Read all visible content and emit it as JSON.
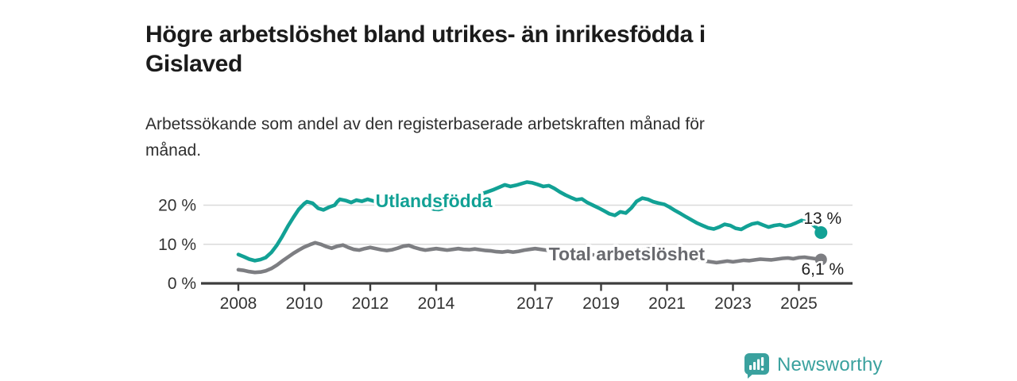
{
  "header": {
    "title_lines": [
      "Högre arbetslöshet bland utrikes- än inrikesfödda i",
      "Gislaved"
    ],
    "subtitle_lines": [
      "Arbetssökande som andel av den registerbaserade arbetskraften månad för",
      "månad."
    ]
  },
  "branding": {
    "logo_text": "Newsworthy",
    "logo_icon": "speech-bubble-bar-chart-icon",
    "brand_color": "#3aa19e"
  },
  "chart_data": {
    "type": "line",
    "unit": "%",
    "grid": true,
    "legend": "inline-labels",
    "axis_color": "#3d3d3d",
    "grid_color": "#dadada",
    "tick_label_color": "#333333",
    "end_label_color": "#1f1f1f",
    "x_range": [
      2008.0,
      2025.67
    ],
    "y_range": [
      0,
      27
    ],
    "x_ticks": [
      {
        "year": 2008,
        "label": "2008"
      },
      {
        "year": 2010,
        "label": "2010"
      },
      {
        "year": 2012,
        "label": "2012"
      },
      {
        "year": 2014,
        "label": "2014"
      },
      {
        "year": 2017,
        "label": "2017"
      },
      {
        "year": 2019,
        "label": "2019"
      },
      {
        "year": 2021,
        "label": "2021"
      },
      {
        "year": 2023,
        "label": "2023"
      },
      {
        "year": 2025,
        "label": "2025"
      }
    ],
    "y_ticks": [
      {
        "value": 0,
        "label": "0 %"
      },
      {
        "value": 10,
        "label": "10 %"
      },
      {
        "value": 20,
        "label": "20 %"
      }
    ],
    "series": [
      {
        "name": "Utlandsfödda",
        "color": "#12a195",
        "label_color": "#12a195",
        "line_label": {
          "text": "Utlandsfödda",
          "year": 2013.93,
          "value": 21.1
        },
        "end_label": "13 %",
        "end_value": 13.0,
        "points": [
          [
            2008.0,
            7.4
          ],
          [
            2008.17,
            6.8
          ],
          [
            2008.33,
            6.2
          ],
          [
            2008.5,
            5.8
          ],
          [
            2008.67,
            6.1
          ],
          [
            2008.83,
            6.6
          ],
          [
            2009.0,
            7.9
          ],
          [
            2009.17,
            9.8
          ],
          [
            2009.33,
            12.0
          ],
          [
            2009.5,
            14.6
          ],
          [
            2009.67,
            16.9
          ],
          [
            2009.83,
            18.9
          ],
          [
            2010.0,
            20.4
          ],
          [
            2010.08,
            20.9
          ],
          [
            2010.25,
            20.5
          ],
          [
            2010.42,
            19.2
          ],
          [
            2010.58,
            18.8
          ],
          [
            2010.75,
            19.5
          ],
          [
            2010.92,
            20.0
          ],
          [
            2011.0,
            20.9
          ],
          [
            2011.08,
            21.5
          ],
          [
            2011.25,
            21.2
          ],
          [
            2011.42,
            20.7
          ],
          [
            2011.58,
            21.3
          ],
          [
            2011.75,
            21.0
          ],
          [
            2011.92,
            21.5
          ],
          [
            2012.08,
            21.1
          ],
          [
            2012.25,
            20.7
          ],
          [
            2012.42,
            21.0
          ],
          [
            2012.58,
            20.8
          ],
          [
            2012.75,
            21.1
          ],
          [
            2012.92,
            21.3
          ],
          [
            2013.08,
            21.0
          ],
          [
            2013.25,
            20.8
          ],
          [
            2013.42,
            20.5
          ],
          [
            2013.58,
            20.1
          ],
          [
            2013.75,
            19.6
          ],
          [
            2013.92,
            19.0
          ],
          [
            2014.08,
            18.9
          ],
          [
            2014.25,
            19.3
          ],
          [
            2014.42,
            19.8
          ],
          [
            2014.58,
            20.3
          ],
          [
            2014.75,
            20.8
          ],
          [
            2014.92,
            21.3
          ],
          [
            2015.08,
            21.9
          ],
          [
            2015.25,
            22.4
          ],
          [
            2015.42,
            23.0
          ],
          [
            2015.58,
            23.5
          ],
          [
            2015.75,
            24.0
          ],
          [
            2015.92,
            24.6
          ],
          [
            2016.08,
            25.2
          ],
          [
            2016.25,
            24.8
          ],
          [
            2016.42,
            25.1
          ],
          [
            2016.58,
            25.5
          ],
          [
            2016.75,
            25.9
          ],
          [
            2016.92,
            25.7
          ],
          [
            2017.08,
            25.3
          ],
          [
            2017.25,
            24.8
          ],
          [
            2017.42,
            25.0
          ],
          [
            2017.58,
            24.3
          ],
          [
            2017.75,
            23.4
          ],
          [
            2017.92,
            22.6
          ],
          [
            2018.08,
            22.0
          ],
          [
            2018.25,
            21.4
          ],
          [
            2018.42,
            21.6
          ],
          [
            2018.58,
            20.7
          ],
          [
            2018.75,
            20.0
          ],
          [
            2018.92,
            19.3
          ],
          [
            2019.08,
            18.6
          ],
          [
            2019.25,
            17.8
          ],
          [
            2019.42,
            17.4
          ],
          [
            2019.58,
            18.3
          ],
          [
            2019.75,
            18.0
          ],
          [
            2019.92,
            19.3
          ],
          [
            2020.08,
            21.0
          ],
          [
            2020.25,
            21.8
          ],
          [
            2020.42,
            21.5
          ],
          [
            2020.58,
            20.9
          ],
          [
            2020.75,
            20.5
          ],
          [
            2020.92,
            20.2
          ],
          [
            2021.08,
            19.5
          ],
          [
            2021.25,
            18.6
          ],
          [
            2021.42,
            17.8
          ],
          [
            2021.58,
            17.0
          ],
          [
            2021.75,
            16.2
          ],
          [
            2021.92,
            15.4
          ],
          [
            2022.08,
            14.8
          ],
          [
            2022.25,
            14.2
          ],
          [
            2022.42,
            13.9
          ],
          [
            2022.58,
            14.4
          ],
          [
            2022.75,
            15.1
          ],
          [
            2022.92,
            14.8
          ],
          [
            2023.08,
            14.1
          ],
          [
            2023.25,
            13.8
          ],
          [
            2023.42,
            14.6
          ],
          [
            2023.58,
            15.2
          ],
          [
            2023.75,
            15.5
          ],
          [
            2023.92,
            14.9
          ],
          [
            2024.08,
            14.4
          ],
          [
            2024.25,
            14.8
          ],
          [
            2024.42,
            15.0
          ],
          [
            2024.58,
            14.6
          ],
          [
            2024.75,
            14.9
          ],
          [
            2024.92,
            15.5
          ],
          [
            2025.08,
            16.1
          ],
          [
            2025.25,
            15.7
          ],
          [
            2025.42,
            15.0
          ],
          [
            2025.58,
            13.9
          ],
          [
            2025.67,
            13.0
          ]
        ]
      },
      {
        "name": "Total arbetslöshet",
        "color": "#7d7e82",
        "label_color": "#696a6f",
        "line_label": {
          "text": "Total arbetslöshet",
          "year": 2019.78,
          "value": 7.5
        },
        "end_label": "6,1 %",
        "end_value": 6.1,
        "points": [
          [
            2008.0,
            3.5
          ],
          [
            2008.17,
            3.3
          ],
          [
            2008.33,
            3.0
          ],
          [
            2008.5,
            2.8
          ],
          [
            2008.67,
            2.9
          ],
          [
            2008.83,
            3.2
          ],
          [
            2009.0,
            3.8
          ],
          [
            2009.17,
            4.7
          ],
          [
            2009.33,
            5.7
          ],
          [
            2009.5,
            6.7
          ],
          [
            2009.67,
            7.7
          ],
          [
            2009.83,
            8.5
          ],
          [
            2010.0,
            9.3
          ],
          [
            2010.17,
            9.9
          ],
          [
            2010.33,
            10.4
          ],
          [
            2010.5,
            10.0
          ],
          [
            2010.67,
            9.4
          ],
          [
            2010.83,
            9.0
          ],
          [
            2011.0,
            9.5
          ],
          [
            2011.17,
            9.8
          ],
          [
            2011.33,
            9.2
          ],
          [
            2011.5,
            8.7
          ],
          [
            2011.67,
            8.5
          ],
          [
            2011.83,
            8.9
          ],
          [
            2012.0,
            9.2
          ],
          [
            2012.17,
            8.9
          ],
          [
            2012.33,
            8.6
          ],
          [
            2012.5,
            8.4
          ],
          [
            2012.67,
            8.6
          ],
          [
            2012.83,
            9.0
          ],
          [
            2013.0,
            9.5
          ],
          [
            2013.17,
            9.7
          ],
          [
            2013.33,
            9.2
          ],
          [
            2013.5,
            8.8
          ],
          [
            2013.67,
            8.5
          ],
          [
            2013.83,
            8.7
          ],
          [
            2014.0,
            8.9
          ],
          [
            2014.17,
            8.7
          ],
          [
            2014.33,
            8.5
          ],
          [
            2014.5,
            8.7
          ],
          [
            2014.67,
            8.9
          ],
          [
            2014.83,
            8.7
          ],
          [
            2015.0,
            8.6
          ],
          [
            2015.17,
            8.8
          ],
          [
            2015.33,
            8.6
          ],
          [
            2015.5,
            8.4
          ],
          [
            2015.67,
            8.3
          ],
          [
            2015.83,
            8.1
          ],
          [
            2016.0,
            8.0
          ],
          [
            2016.17,
            8.2
          ],
          [
            2016.33,
            8.0
          ],
          [
            2016.5,
            8.2
          ],
          [
            2016.67,
            8.5
          ],
          [
            2016.83,
            8.7
          ],
          [
            2017.0,
            8.9
          ],
          [
            2017.17,
            8.7
          ],
          [
            2017.33,
            8.5
          ],
          [
            2017.5,
            8.4
          ],
          [
            2017.67,
            8.2
          ],
          [
            2017.83,
            8.0
          ],
          [
            2018.0,
            7.9
          ],
          [
            2018.25,
            7.7
          ],
          [
            2018.5,
            7.5
          ],
          [
            2018.75,
            7.3
          ],
          [
            2019.0,
            7.2
          ],
          [
            2019.25,
            7.0
          ],
          [
            2019.5,
            6.9
          ],
          [
            2019.75,
            7.1
          ],
          [
            2020.0,
            7.6
          ],
          [
            2020.25,
            8.5
          ],
          [
            2020.5,
            8.9
          ],
          [
            2020.75,
            8.7
          ],
          [
            2021.0,
            8.3
          ],
          [
            2021.25,
            7.7
          ],
          [
            2021.5,
            7.1
          ],
          [
            2021.75,
            6.5
          ],
          [
            2022.0,
            5.9
          ],
          [
            2022.17,
            5.7
          ],
          [
            2022.33,
            5.5
          ],
          [
            2022.5,
            5.3
          ],
          [
            2022.67,
            5.5
          ],
          [
            2022.83,
            5.7
          ],
          [
            2023.0,
            5.5
          ],
          [
            2023.17,
            5.7
          ],
          [
            2023.33,
            5.9
          ],
          [
            2023.5,
            5.8
          ],
          [
            2023.67,
            6.0
          ],
          [
            2023.83,
            6.2
          ],
          [
            2024.0,
            6.1
          ],
          [
            2024.17,
            6.0
          ],
          [
            2024.33,
            6.2
          ],
          [
            2024.5,
            6.4
          ],
          [
            2024.67,
            6.5
          ],
          [
            2024.83,
            6.3
          ],
          [
            2025.0,
            6.6
          ],
          [
            2025.17,
            6.7
          ],
          [
            2025.33,
            6.5
          ],
          [
            2025.5,
            6.3
          ],
          [
            2025.67,
            6.1
          ]
        ]
      }
    ]
  }
}
